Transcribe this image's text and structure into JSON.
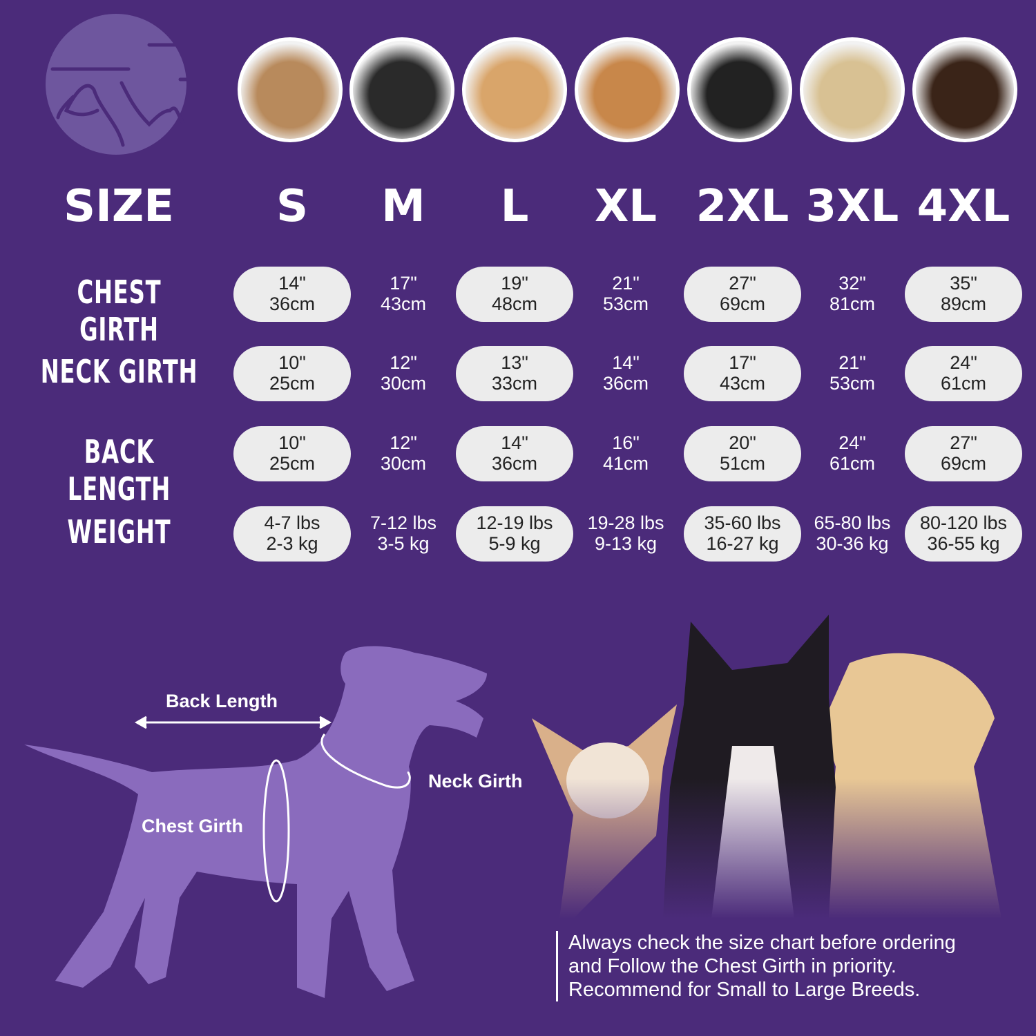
{
  "colors": {
    "background": "#4b2b7a",
    "silhouette": "#8a6bbd",
    "pill": "#ececec",
    "logo": "#6e569e"
  },
  "logo": {
    "icon": "dog-cat-logo-icon"
  },
  "breed_photos": [
    "shih-tzu",
    "boston-terrier",
    "cocker-spaniel",
    "beagle",
    "border-collie",
    "labrador",
    "doberman"
  ],
  "table": {
    "size_label": "SIZE",
    "sizes": [
      "S",
      "M",
      "L",
      "XL",
      "2XL",
      "3XL",
      "4XL"
    ],
    "rows": [
      {
        "label": "CHEST GIRTH",
        "values": [
          [
            "14\"",
            "36cm"
          ],
          [
            "17\"",
            "43cm"
          ],
          [
            "19\"",
            "48cm"
          ],
          [
            "21\"",
            "53cm"
          ],
          [
            "27\"",
            "69cm"
          ],
          [
            "32\"",
            "81cm"
          ],
          [
            "35\"",
            "89cm"
          ]
        ]
      },
      {
        "label": "NECK GIRTH",
        "values": [
          [
            "10\"",
            "25cm"
          ],
          [
            "12\"",
            "30cm"
          ],
          [
            "13\"",
            "33cm"
          ],
          [
            "14\"",
            "36cm"
          ],
          [
            "17\"",
            "43cm"
          ],
          [
            "21\"",
            "53cm"
          ],
          [
            "24\"",
            "61cm"
          ]
        ]
      },
      {
        "label": "BACK LENGTH",
        "values": [
          [
            "10\"",
            "25cm"
          ],
          [
            "12\"",
            "30cm"
          ],
          [
            "14\"",
            "36cm"
          ],
          [
            "16\"",
            "41cm"
          ],
          [
            "20\"",
            "51cm"
          ],
          [
            "24\"",
            "61cm"
          ],
          [
            "27\"",
            "69cm"
          ]
        ]
      },
      {
        "label": "WEIGHT",
        "values": [
          [
            "4-7 lbs",
            "2-3 kg"
          ],
          [
            "7-12 lbs",
            "3-5 kg"
          ],
          [
            "12-19 lbs",
            "5-9 kg"
          ],
          [
            "19-28 lbs",
            "9-13 kg"
          ],
          [
            "35-60 lbs",
            "16-27 kg"
          ],
          [
            "65-80 lbs",
            "30-36 kg"
          ],
          [
            "80-120 lbs",
            "36-55 kg"
          ]
        ]
      }
    ]
  },
  "diagram": {
    "back_length": "Back Length",
    "neck_girth": "Neck Girth",
    "chest_girth": "Chest Girth"
  },
  "note": [
    "Always check the size chart before ordering",
    "and Follow the Chest Girth in priority.",
    "Recommend for Small to Large Breeds."
  ]
}
